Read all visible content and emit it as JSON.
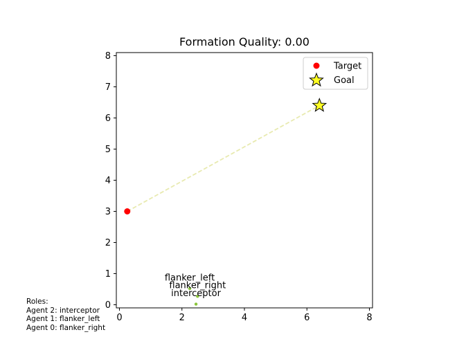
{
  "chart_data": {
    "type": "scatter",
    "title": "Formation Quality: 0.00",
    "xlabel": "",
    "ylabel": "",
    "xlim": [
      -0.1,
      8.1
    ],
    "ylim": [
      -0.1,
      8.1
    ],
    "xticks": [
      0,
      2,
      4,
      6,
      8
    ],
    "yticks": [
      0,
      1,
      2,
      3,
      4,
      5,
      6,
      7,
      8
    ],
    "grid": false,
    "legend": {
      "placement": "top-right",
      "entries": [
        "Target",
        "Goal"
      ]
    },
    "target": {
      "label": "Target",
      "x": 0.25,
      "y": 3.0,
      "color": "#ff0000"
    },
    "goal": {
      "label": "Goal",
      "x": 6.4,
      "y": 6.4,
      "color": "#ffff22"
    },
    "path_line": {
      "from": [
        0.25,
        3.0
      ],
      "to": [
        6.4,
        6.4
      ],
      "color": "#e8eab0",
      "style": "dashed"
    },
    "agents": [
      {
        "label": "flanker_left",
        "x": 2.25,
        "y": 0.52,
        "label_x": 2.25,
        "label_y": 0.78,
        "color": "#8ac53a"
      },
      {
        "label": "flanker_right",
        "x": 2.5,
        "y": 0.27,
        "label_x": 2.5,
        "label_y": 0.53,
        "color": "#8ac53a"
      },
      {
        "label": "interceptor",
        "x": 2.45,
        "y": 0.02,
        "label_x": 2.45,
        "label_y": 0.28,
        "color": "#8ac53a"
      }
    ]
  },
  "roles": {
    "heading": "Roles:",
    "lines": [
      "Agent 2: interceptor",
      "Agent 1: flanker_left",
      "Agent 0: flanker_right"
    ]
  }
}
